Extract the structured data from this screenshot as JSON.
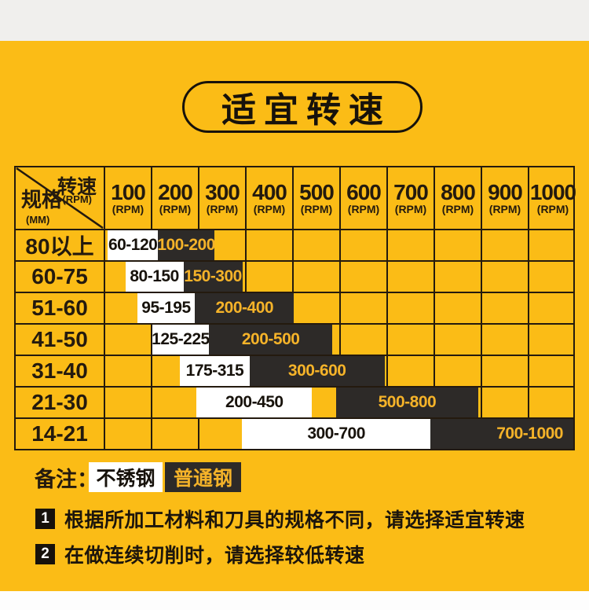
{
  "title": "适宜转速",
  "colors": {
    "background": "#FBBC16",
    "top_band": "#F0EFED",
    "bottom_band": "#FDFDFD",
    "border": "#241A0E",
    "bar_dark": "#2D2A28",
    "bar_dark_text": "#F5B329",
    "bar_white": "#FFFFFF"
  },
  "table": {
    "corner": {
      "top_label": "转速",
      "top_unit": "(RPM)",
      "bottom_label": "规格",
      "bottom_unit": "(MM)"
    },
    "columns": [
      {
        "rpm": "100",
        "unit": "(RPM)"
      },
      {
        "rpm": "200",
        "unit": "(RPM)"
      },
      {
        "rpm": "300",
        "unit": "(RPM)"
      },
      {
        "rpm": "400",
        "unit": "(RPM)"
      },
      {
        "rpm": "500",
        "unit": "(RPM)"
      },
      {
        "rpm": "600",
        "unit": "(RPM)"
      },
      {
        "rpm": "700",
        "unit": "(RPM)"
      },
      {
        "rpm": "800",
        "unit": "(RPM)"
      },
      {
        "rpm": "900",
        "unit": "(RPM)"
      },
      {
        "rpm": "1000",
        "unit": "(RPM)"
      }
    ],
    "rows": [
      {
        "spec": "80以上",
        "stainless": {
          "label": "60-120",
          "start": 0.05,
          "end": 1.13
        },
        "ordinary": {
          "label": "100-200",
          "start": 1.13,
          "end": 2.33
        }
      },
      {
        "spec": "60-75",
        "stainless": {
          "label": "80-150",
          "start": 0.43,
          "end": 1.67
        },
        "ordinary": {
          "label": "150-300",
          "start": 1.67,
          "end": 2.93
        }
      },
      {
        "spec": "51-60",
        "stainless": {
          "label": "95-195",
          "start": 0.68,
          "end": 1.92
        },
        "ordinary": {
          "label": "200-400",
          "start": 1.92,
          "end": 4.03
        }
      },
      {
        "spec": "41-50",
        "stainless": {
          "label": "125-225",
          "start": 1.0,
          "end": 2.22
        },
        "ordinary": {
          "label": "200-500",
          "start": 2.22,
          "end": 4.85
        }
      },
      {
        "spec": "31-40",
        "stainless": {
          "label": "175-315",
          "start": 1.6,
          "end": 3.08
        },
        "ordinary": {
          "label": "300-600",
          "start": 3.08,
          "end": 5.97
        }
      },
      {
        "spec": "21-30",
        "stainless": {
          "label": "200-450",
          "start": 1.95,
          "end": 4.42
        },
        "ordinary": {
          "label": "500-800",
          "start": 4.93,
          "end": 7.97
        }
      },
      {
        "spec": "14-21",
        "stainless": {
          "label": "300-700",
          "start": 2.92,
          "end": 6.95
        },
        "ordinary": {
          "label": "700-1000",
          "start": 6.95,
          "end": 10.0,
          "align": "right"
        }
      }
    ]
  },
  "legend": {
    "label": "备注：",
    "stainless": "不锈钢",
    "ordinary": "普通钢"
  },
  "notes": [
    {
      "num": "1",
      "text": "根据所加工材料和刀具的规格不同，请选择适宜转速"
    },
    {
      "num": "2",
      "text": "在做连续切削时，请选择较低转速"
    }
  ],
  "chart_data": {
    "type": "table",
    "title": "适宜转速",
    "x_axis_label": "转速 (RPM)",
    "y_axis_label": "规格 (MM)",
    "columns_rpm": [
      100,
      200,
      300,
      400,
      500,
      600,
      700,
      800,
      900,
      1000
    ],
    "legend": {
      "white_bar": "不锈钢",
      "black_bar": "普通钢"
    },
    "rows": [
      {
        "spec_mm": "80以上",
        "stainless_rpm_range": [
          60,
          120
        ],
        "ordinary_rpm_range": [
          100,
          200
        ]
      },
      {
        "spec_mm": "60-75",
        "stainless_rpm_range": [
          80,
          150
        ],
        "ordinary_rpm_range": [
          150,
          300
        ]
      },
      {
        "spec_mm": "51-60",
        "stainless_rpm_range": [
          95,
          195
        ],
        "ordinary_rpm_range": [
          200,
          400
        ]
      },
      {
        "spec_mm": "41-50",
        "stainless_rpm_range": [
          125,
          225
        ],
        "ordinary_rpm_range": [
          200,
          500
        ]
      },
      {
        "spec_mm": "31-40",
        "stainless_rpm_range": [
          175,
          315
        ],
        "ordinary_rpm_range": [
          300,
          600
        ]
      },
      {
        "spec_mm": "21-30",
        "stainless_rpm_range": [
          200,
          450
        ],
        "ordinary_rpm_range": [
          500,
          800
        ]
      },
      {
        "spec_mm": "14-21",
        "stainless_rpm_range": [
          300,
          700
        ],
        "ordinary_rpm_range": [
          700,
          1000
        ]
      }
    ]
  }
}
